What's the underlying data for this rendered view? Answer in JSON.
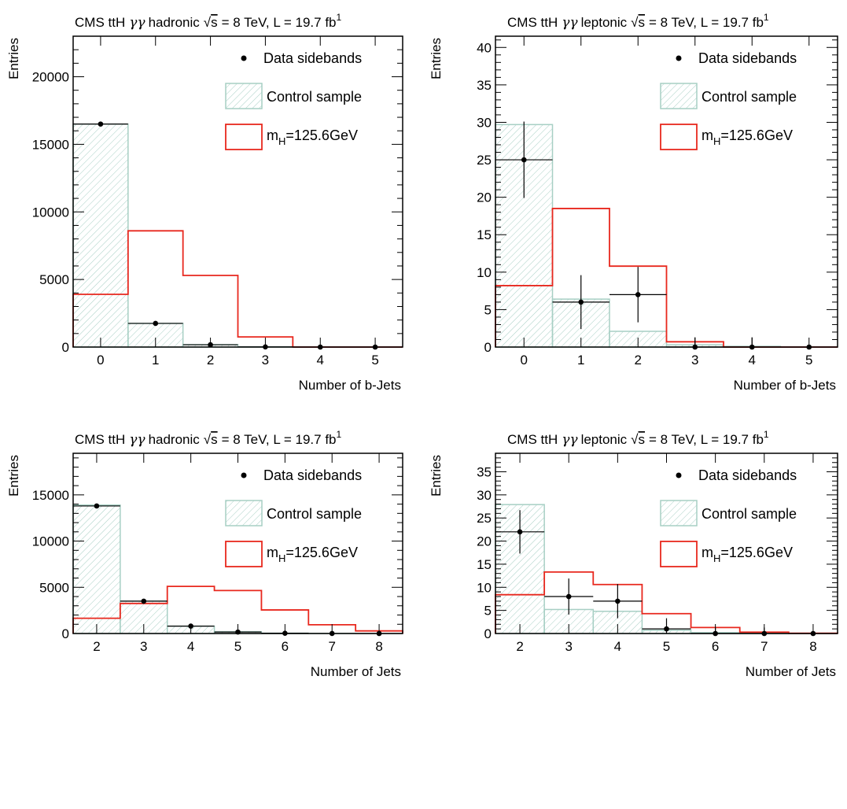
{
  "chart_data": [
    {
      "type": "histogram",
      "title_prefix": "CMS ttH",
      "title_channel": "hadronic",
      "title_sqrt": "s",
      "title_energy": "= 8 TeV, L = 19.7 fb",
      "title_lumi_exp": "1",
      "xlabel": "Number of b-Jets",
      "ylabel": "Entries",
      "xlim": [
        -0.5,
        5.5
      ],
      "ylim": [
        0,
        23000
      ],
      "bin_edges": [
        -0.5,
        0.5,
        1.5,
        2.5,
        3.5,
        4.5,
        5.5
      ],
      "x_ticks": [
        0,
        1,
        2,
        3,
        4,
        5
      ],
      "x_tick_labels": [
        "0",
        "1",
        "2",
        "3",
        "4",
        "5"
      ],
      "y_ticks": [
        0,
        5000,
        10000,
        15000,
        20000
      ],
      "y_tick_labels": [
        "0",
        "5000",
        "10000",
        "15000",
        "20000"
      ],
      "legend": {
        "data_label": "Data sidebands",
        "control_label": "Control sample",
        "signal_label": "m",
        "signal_sub": "H",
        "signal_rest": "=125.6GeV"
      },
      "control_sample": [
        16500,
        1750,
        180,
        20,
        0,
        0
      ],
      "signal": [
        3900,
        8600,
        5300,
        750,
        0,
        0
      ],
      "data": [
        {
          "x": 0,
          "y": 16500,
          "err": 0
        },
        {
          "x": 1,
          "y": 1750,
          "err": 0
        },
        {
          "x": 2,
          "y": 170,
          "err": 0
        },
        {
          "x": 3,
          "y": 10,
          "err": 0
        },
        {
          "x": 4,
          "y": 0,
          "err": 0
        },
        {
          "x": 5,
          "y": 0,
          "err": 0
        }
      ]
    },
    {
      "type": "histogram",
      "title_prefix": "CMS ttH",
      "title_channel": "leptonic",
      "title_sqrt": "s",
      "title_energy": "= 8 TeV, L = 19.7 fb",
      "title_lumi_exp": "1",
      "xlabel": "Number of b-Jets",
      "ylabel": "Entries",
      "xlim": [
        -0.5,
        5.5
      ],
      "ylim": [
        0,
        41.5
      ],
      "bin_edges": [
        -0.5,
        0.5,
        1.5,
        2.5,
        3.5,
        4.5,
        5.5
      ],
      "x_ticks": [
        0,
        1,
        2,
        3,
        4,
        5
      ],
      "x_tick_labels": [
        "0",
        "1",
        "2",
        "3",
        "4",
        "5"
      ],
      "y_ticks": [
        0,
        5,
        10,
        15,
        20,
        25,
        30,
        35,
        40
      ],
      "y_tick_labels": [
        "0",
        "5",
        "10",
        "15",
        "20",
        "25",
        "30",
        "35",
        "40"
      ],
      "legend": {
        "data_label": "Data sidebands",
        "control_label": "Control sample",
        "signal_label": "m",
        "signal_sub": "H",
        "signal_rest": "=125.6GeV"
      },
      "control_sample": [
        29.7,
        6.4,
        2.1,
        0.3,
        0.1,
        0
      ],
      "signal": [
        8.2,
        18.5,
        10.8,
        0.7,
        0,
        0
      ],
      "data": [
        {
          "x": 0,
          "y": 25,
          "err": 5.1
        },
        {
          "x": 1,
          "y": 6,
          "err": 3.6
        },
        {
          "x": 2,
          "y": 7,
          "err": 3.7
        },
        {
          "x": 3,
          "y": 0,
          "err": 1.3
        },
        {
          "x": 4,
          "y": 0,
          "err": 1.3
        },
        {
          "x": 5,
          "y": 0,
          "err": 0
        }
      ]
    },
    {
      "type": "histogram",
      "title_prefix": "CMS ttH",
      "title_channel": "hadronic",
      "title_sqrt": "s",
      "title_energy": "= 8 TeV, L = 19.7 fb",
      "title_lumi_exp": "1",
      "xlabel": "Number of Jets",
      "ylabel": "Entries",
      "xlim": [
        1.5,
        8.5
      ],
      "ylim": [
        0,
        19500
      ],
      "bin_edges": [
        1.5,
        2.5,
        3.5,
        4.5,
        5.5,
        6.5,
        7.5,
        8.5
      ],
      "x_ticks": [
        2,
        3,
        4,
        5,
        6,
        7,
        8
      ],
      "x_tick_labels": [
        "2",
        "3",
        "4",
        "5",
        "6",
        "7",
        "8"
      ],
      "y_ticks": [
        0,
        5000,
        10000,
        15000
      ],
      "y_tick_labels": [
        "0",
        "5000",
        "10000",
        "15000"
      ],
      "legend": {
        "data_label": "Data sidebands",
        "control_label": "Control sample",
        "signal_label": "m",
        "signal_sub": "H",
        "signal_rest": "=125.6GeV"
      },
      "control_sample": [
        13900,
        3500,
        800,
        200,
        40,
        10,
        0
      ],
      "signal": [
        1650,
        3250,
        5100,
        4650,
        2550,
        950,
        280
      ],
      "data": [
        {
          "x": 2,
          "y": 13800,
          "err": 0
        },
        {
          "x": 3,
          "y": 3500,
          "err": 0
        },
        {
          "x": 4,
          "y": 800,
          "err": 0
        },
        {
          "x": 5,
          "y": 160,
          "err": 0
        },
        {
          "x": 6,
          "y": 30,
          "err": 0
        },
        {
          "x": 7,
          "y": 5,
          "err": 0
        },
        {
          "x": 8,
          "y": 0,
          "err": 0
        }
      ]
    },
    {
      "type": "histogram",
      "title_prefix": "CMS ttH",
      "title_channel": "leptonic",
      "title_sqrt": "s",
      "title_energy": "= 8 TeV, L = 19.7 fb",
      "title_lumi_exp": "1",
      "xlabel": "Number of Jets",
      "ylabel": "Entries",
      "xlim": [
        1.5,
        8.5
      ],
      "ylim": [
        0,
        39
      ],
      "bin_edges": [
        1.5,
        2.5,
        3.5,
        4.5,
        5.5,
        6.5,
        7.5,
        8.5
      ],
      "x_ticks": [
        2,
        3,
        4,
        5,
        6,
        7,
        8
      ],
      "x_tick_labels": [
        "2",
        "3",
        "4",
        "5",
        "6",
        "7",
        "8"
      ],
      "y_ticks": [
        0,
        5,
        10,
        15,
        20,
        25,
        30,
        35
      ],
      "y_tick_labels": [
        "0",
        "5",
        "10",
        "15",
        "20",
        "25",
        "30",
        "35"
      ],
      "legend": {
        "data_label": "Data sidebands",
        "control_label": "Control sample",
        "signal_label": "m",
        "signal_sub": "H",
        "signal_rest": "=125.6GeV"
      },
      "control_sample": [
        27.9,
        5.2,
        4.8,
        0.7,
        0.2,
        0.1,
        0
      ],
      "signal": [
        8.4,
        13.3,
        10.6,
        4.3,
        1.3,
        0.3,
        0.05
      ],
      "data": [
        {
          "x": 2,
          "y": 22,
          "err": 4.7
        },
        {
          "x": 3,
          "y": 8,
          "err": 3.9
        },
        {
          "x": 4,
          "y": 7,
          "err": 3.7
        },
        {
          "x": 5,
          "y": 1,
          "err": 2.3
        },
        {
          "x": 6,
          "y": 0,
          "err": 1.3
        },
        {
          "x": 7,
          "y": 0,
          "err": 1.3
        },
        {
          "x": 8,
          "y": 0,
          "err": 0
        }
      ]
    }
  ],
  "colors": {
    "control_fill": "#a7cfc4",
    "control_line": "#a7cfc4",
    "signal": "#e8281e",
    "data": "#000000",
    "axis": "#000000"
  }
}
